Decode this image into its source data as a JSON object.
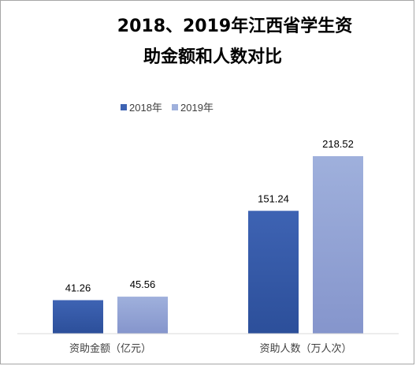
{
  "chart_data": {
    "type": "bar",
    "title_line1": "2018、2019年江西省学生资",
    "title_line2": "助金额和人数对比",
    "categories": [
      "资助金额（亿元）",
      "资助人数（万人次）"
    ],
    "series": [
      {
        "name": "2018年",
        "values": [
          41.26,
          151.24
        ],
        "color": "#3e63b3",
        "gradient_end": "#2c4f9a"
      },
      {
        "name": "2019年",
        "values": [
          45.56,
          218.52
        ],
        "color": "#9fb0dc",
        "gradient_end": "#8595cc"
      }
    ],
    "value_labels": [
      [
        "41.26",
        "151.24"
      ],
      [
        "45.56",
        "218.52"
      ]
    ],
    "ylim": [
      0,
      240
    ],
    "grid": false,
    "legend_position": "top-left"
  }
}
